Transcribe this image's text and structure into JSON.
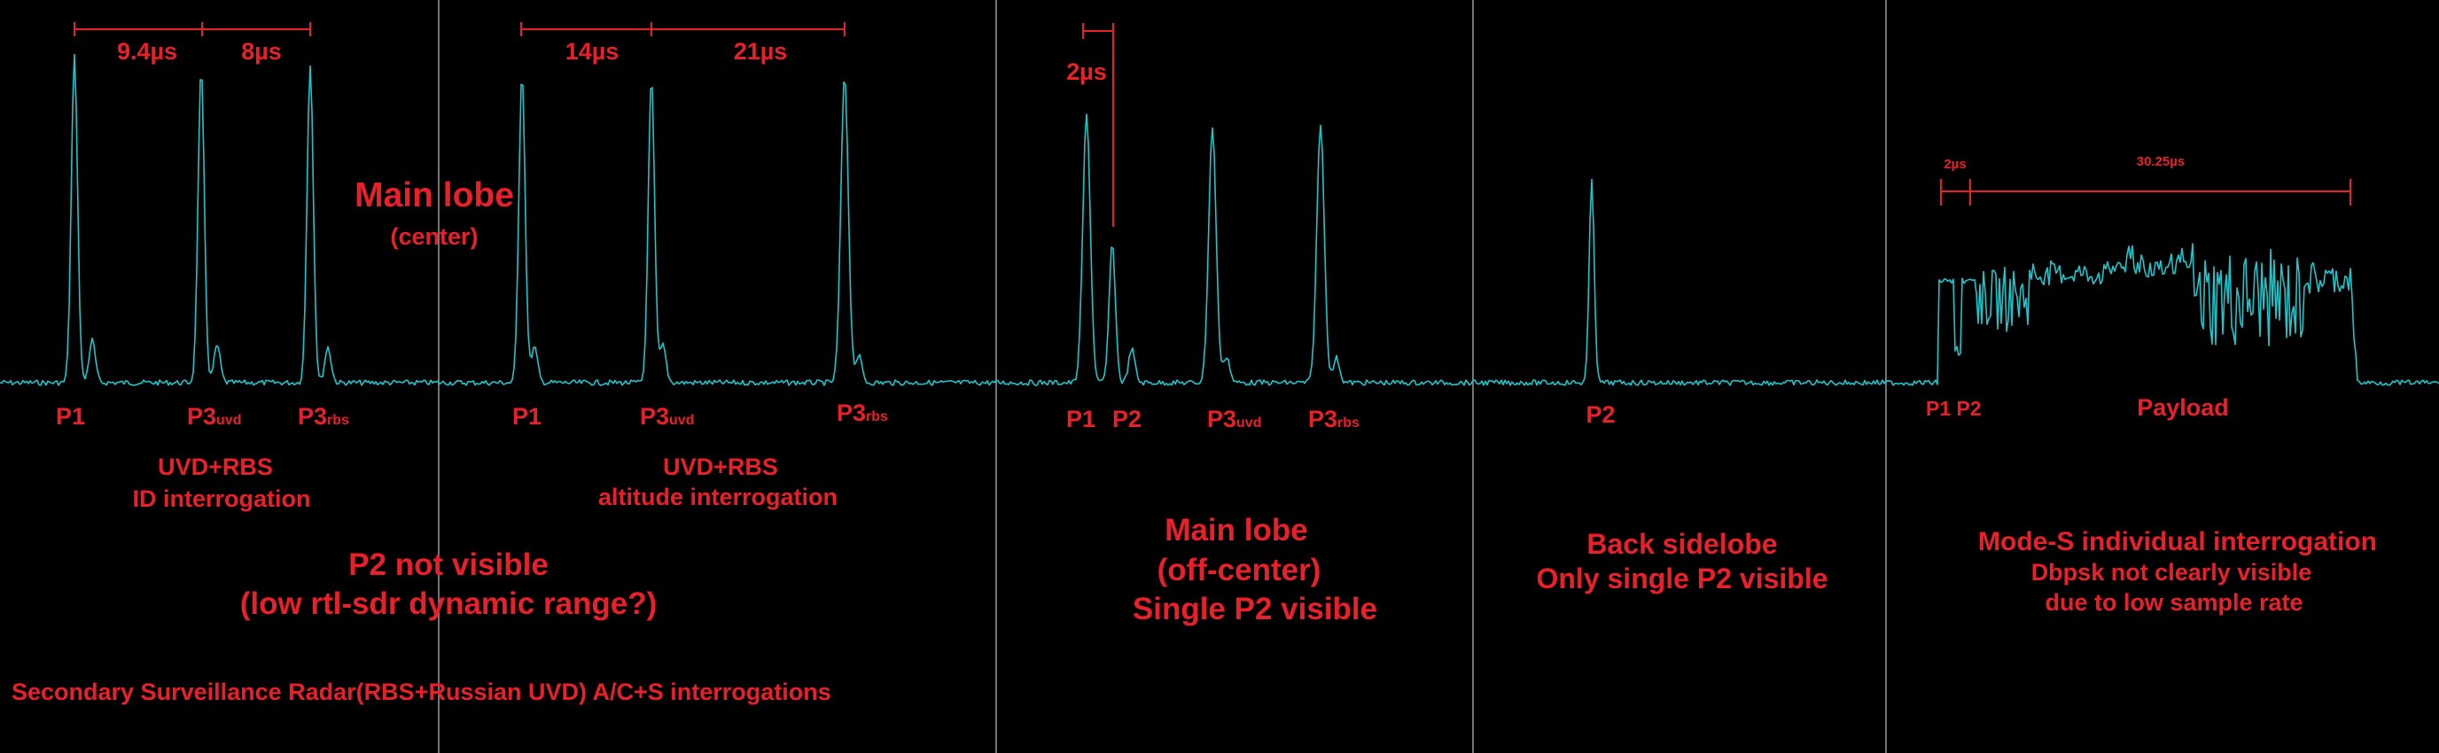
{
  "colors": {
    "background": "#000000",
    "trace": "#19c6cc",
    "annotation": "#e8202a",
    "divider": "#9a9a9a"
  },
  "panel1": {
    "dim_a": "9.4µs",
    "dim_b": "8µs",
    "pulses": {
      "p1": "P1",
      "p3uvd": "P3",
      "p3uvd_sub": "uvd",
      "p3rbs": "P3",
      "p3rbs_sub": "rbs"
    },
    "caption_line1": "UVD+RBS",
    "caption_line2": "ID interrogation"
  },
  "panel2": {
    "dim_a": "14µs",
    "dim_b": "21µs",
    "title": "Main lobe",
    "title_sub": "(center)",
    "pulses": {
      "p1": "P1",
      "p3uvd": "P3",
      "p3uvd_sub": "uvd",
      "p3rbs": "P3",
      "p3rbs_sub": "rbs"
    },
    "caption_line1": "UVD+RBS",
    "caption_line2": "altitude interrogation"
  },
  "shared": {
    "note_line1": "P2 not visible",
    "note_line2": "(low rtl-sdr dynamic range?)",
    "footer": "Secondary Surveillance Radar(RBS+Russian UVD) A/C+S interrogations"
  },
  "panel3": {
    "dim": "2µs",
    "pulses": {
      "p1": "P1",
      "p2": "P2",
      "p3uvd": "P3",
      "p3uvd_sub": "uvd",
      "p3rbs": "P3",
      "p3rbs_sub": "rbs"
    },
    "caption_line1": "Main lobe",
    "caption_line2": "(off-center)",
    "caption_line3": "Single P2 visible"
  },
  "panel4": {
    "pulse": "P2",
    "caption_line1": "Back sidelobe",
    "caption_line2": "Only single P2 visible"
  },
  "panel5": {
    "dim_a": "2µs",
    "dim_b": "30.25µs",
    "pulses_label": "P1 P2",
    "payload_label": "Payload",
    "caption_line1": "Mode-S individual interrogation",
    "caption_line2": "Dbpsk not clearly visible",
    "caption_line3": "due to low sample rate"
  }
}
